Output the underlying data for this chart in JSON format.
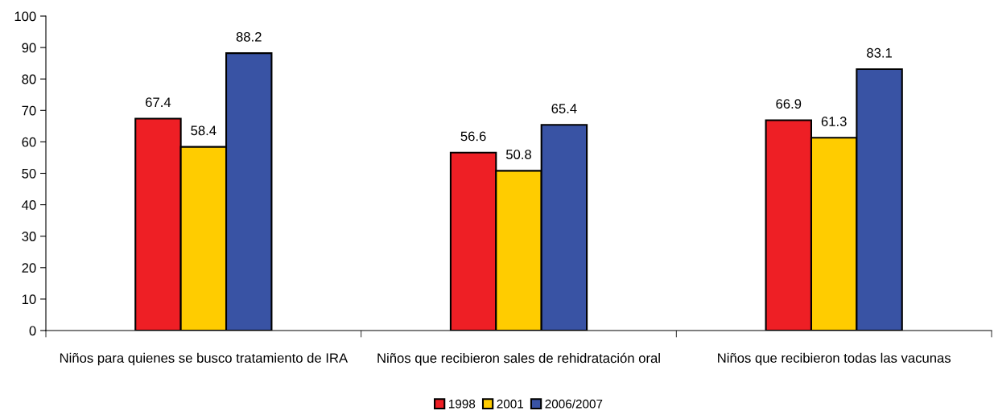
{
  "chart_data": {
    "type": "bar",
    "categories": [
      "Niños para quienes se busco tratamiento de IRA",
      "Niños que recibieron sales de rehidratación oral",
      "Niños que recibieron todas las vacunas"
    ],
    "series": [
      {
        "name": "1998",
        "color": "#ee1f25",
        "values": [
          67.4,
          56.6,
          66.9
        ]
      },
      {
        "name": "2001",
        "color": "#ffcc00",
        "values": [
          58.4,
          50.8,
          61.3
        ]
      },
      {
        "name": "2006/2007",
        "color": "#3953a4",
        "values": [
          88.2,
          65.4,
          83.1
        ]
      }
    ],
    "ylim": [
      0,
      100
    ],
    "yticks": [
      0,
      10,
      20,
      30,
      40,
      50,
      60,
      70,
      80,
      90,
      100
    ],
    "data_labels": true,
    "grid": false,
    "legend": "bottom"
  }
}
